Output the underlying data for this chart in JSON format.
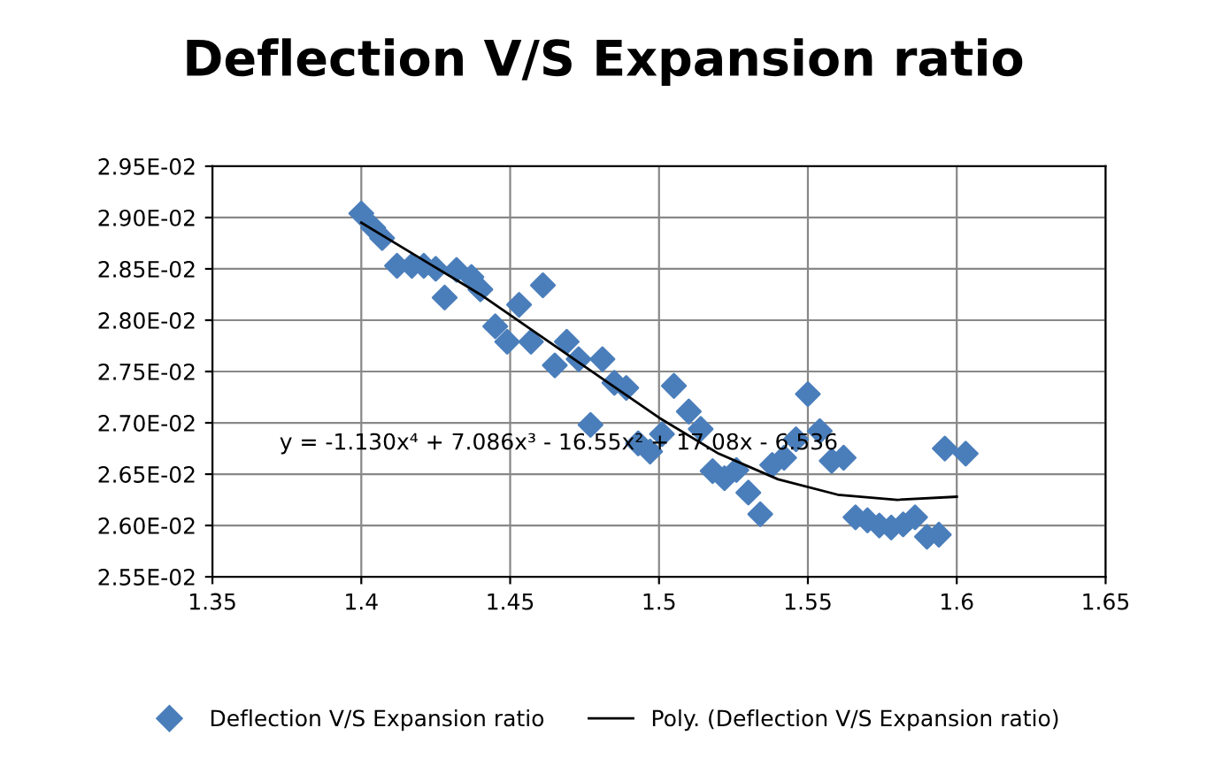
{
  "chart_data": {
    "type": "scatter",
    "title": "Deflection V/S Expansion ratio",
    "annotations": [
      "y = -1.130x⁴ + 7.086x³ - 16.55x² + 17.08x - 6.536"
    ],
    "series": [
      {
        "name": "Deflection V/S Expansion ratio",
        "color": "#4a7ebb",
        "marker": "diamond",
        "x": [
          1.4,
          1.404,
          1.407,
          1.412,
          1.417,
          1.421,
          1.425,
          1.428,
          1.432,
          1.437,
          1.44,
          1.445,
          1.449,
          1.453,
          1.457,
          1.461,
          1.465,
          1.469,
          1.473,
          1.477,
          1.481,
          1.485,
          1.489,
          1.493,
          1.497,
          1.501,
          1.505,
          1.51,
          1.514,
          1.518,
          1.522,
          1.526,
          1.53,
          1.534,
          1.538,
          1.542,
          1.546,
          1.55,
          1.554,
          1.558,
          1.562,
          1.566,
          1.57,
          1.574,
          1.578,
          1.582,
          1.586,
          1.59,
          1.594,
          1.596,
          1.603
        ],
        "values": [
          0.02904,
          0.0289,
          0.0288,
          0.02853,
          0.02853,
          0.02853,
          0.0285,
          0.02822,
          0.02849,
          0.02842,
          0.0283,
          0.02794,
          0.02779,
          0.02815,
          0.02779,
          0.02834,
          0.02756,
          0.02779,
          0.02762,
          0.02698,
          0.02762,
          0.02739,
          0.02734,
          0.0268,
          0.02672,
          0.02689,
          0.02736,
          0.02711,
          0.02694,
          0.02653,
          0.02646,
          0.02654,
          0.02632,
          0.02611,
          0.02659,
          0.02666,
          0.02684,
          0.02728,
          0.02692,
          0.02663,
          0.02666,
          0.02608,
          0.02605,
          0.026,
          0.02598,
          0.02601,
          0.02608,
          0.02589,
          0.02591,
          0.02675,
          0.0267
        ]
      },
      {
        "name": "Poly. (Deflection V/S Expansion ratio)",
        "type": "line",
        "color": "#000000",
        "marker": "none",
        "line_style": "solid",
        "x": [
          1.4,
          1.42,
          1.44,
          1.46,
          1.48,
          1.5,
          1.52,
          1.54,
          1.56,
          1.58,
          1.6
        ],
        "values": [
          0.02895,
          0.0286,
          0.02825,
          0.02785,
          0.02745,
          0.02705,
          0.0267,
          0.02645,
          0.0263,
          0.02625,
          0.02628
        ]
      }
    ],
    "xlim": [
      1.35,
      1.65
    ],
    "xticks": [
      1.35,
      1.4,
      1.45,
      1.5,
      1.55,
      1.6,
      1.65
    ],
    "ylim": [
      0.0255,
      0.0295
    ],
    "yticks": [
      {
        "value": 0.0255,
        "label": "2.55E-02"
      },
      {
        "value": 0.026,
        "label": "2.60E-02"
      },
      {
        "value": 0.0265,
        "label": "2.65E-02"
      },
      {
        "value": 0.027,
        "label": "2.70E-02"
      },
      {
        "value": 0.0275,
        "label": "2.75E-02"
      },
      {
        "value": 0.028,
        "label": "2.80E-02"
      },
      {
        "value": 0.0285,
        "label": "2.85E-02"
      },
      {
        "value": 0.029,
        "label": "2.90E-02"
      },
      {
        "value": 0.0295,
        "label": "2.95E-02"
      }
    ],
    "grid": true,
    "legend": "bottom"
  }
}
